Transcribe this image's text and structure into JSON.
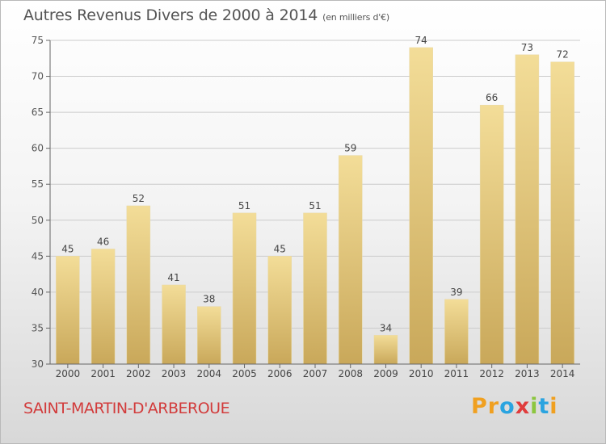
{
  "title": "Autres Revenus Divers de 2000 à 2014",
  "unit_note": "(en milliers d'€)",
  "place": "SAINT-MARTIN-D'ARBEROUE",
  "logo": {
    "letters": [
      "P",
      "r",
      "o",
      "x",
      "i",
      "t",
      "i"
    ],
    "colors": [
      "#f0a020",
      "#f0a020",
      "#2aa4e0",
      "#e03c3c",
      "#8cc63f",
      "#2aa4e0",
      "#f0a020"
    ]
  },
  "colors": {
    "bar_light": "#f3dd98",
    "bar_dark": "#c9a85a",
    "axis": "#666666",
    "grid": "#cccccc",
    "city": "#d23b3b"
  },
  "chart_data": {
    "type": "bar",
    "categories": [
      "2000",
      "2001",
      "2002",
      "2003",
      "2004",
      "2005",
      "2006",
      "2007",
      "2008",
      "2009",
      "2010",
      "2011",
      "2012",
      "2013",
      "2014"
    ],
    "values": [
      45,
      46,
      52,
      41,
      38,
      51,
      45,
      51,
      59,
      34,
      74,
      39,
      66,
      73,
      72
    ],
    "ylim": [
      30,
      75
    ],
    "yticks": [
      30,
      35,
      40,
      45,
      50,
      55,
      60,
      65,
      70,
      75
    ],
    "grid": true,
    "legend": "none"
  }
}
